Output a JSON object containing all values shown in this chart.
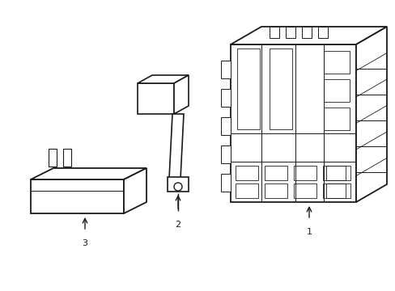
{
  "background_color": "#ffffff",
  "line_color": "#1a1a1a",
  "line_width": 1.0,
  "fig_width": 4.89,
  "fig_height": 3.6,
  "dpi": 100,
  "label_fontsize": 8,
  "component1_label": "1",
  "component2_label": "2",
  "component3_label": "3"
}
